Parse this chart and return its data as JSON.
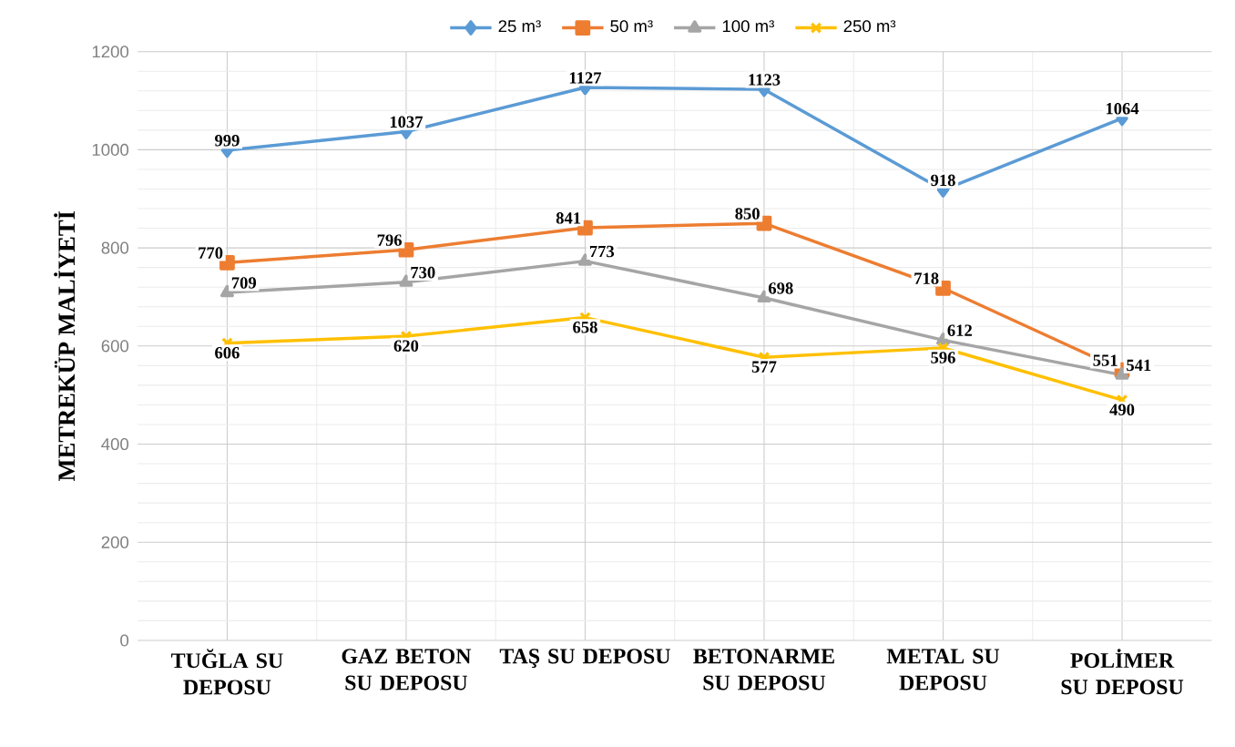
{
  "chart_data": {
    "type": "line",
    "ylabel": "METREKÜP MALİYETİ",
    "categories": [
      "TUĞLA SU DEPOSU",
      "GAZ BETON SU DEPOSU",
      "TAŞ SU DEPOSU",
      "BETONARME SU DEPOSU",
      "METAL SU DEPOSU",
      "POLİMER SU DEPOSU"
    ],
    "series": [
      {
        "name": "25 m³",
        "color": "#5b9bd5",
        "marker": "diamond",
        "values": [
          999,
          1037,
          1127,
          1123,
          918,
          1064
        ]
      },
      {
        "name": "50 m³",
        "color": "#ed7d31",
        "marker": "square",
        "values": [
          770,
          796,
          841,
          850,
          718,
          551
        ]
      },
      {
        "name": "100 m³",
        "color": "#a5a5a5",
        "marker": "triangle",
        "values": [
          709,
          730,
          773,
          698,
          612,
          541
        ]
      },
      {
        "name": "250 m³",
        "color": "#ffc000",
        "marker": "cross",
        "values": [
          606,
          620,
          658,
          577,
          596,
          490
        ]
      }
    ],
    "ylim": [
      0,
      1200
    ],
    "yticks": [
      0,
      200,
      400,
      600,
      800,
      1000,
      1200
    ],
    "grid": true,
    "legend": "top",
    "data_labels": true
  }
}
